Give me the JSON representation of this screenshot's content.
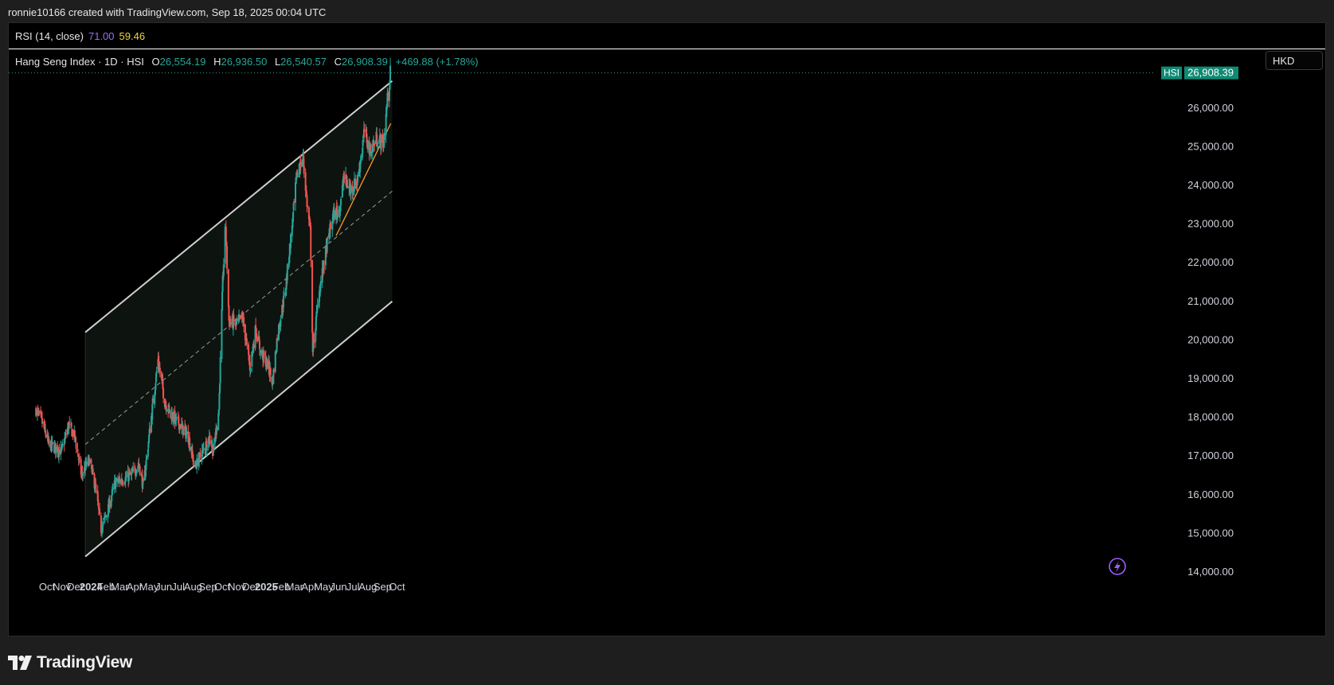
{
  "header": {
    "credit": "ronnie10166 created with TradingView.com, Sep 18, 2025 00:04 UTC"
  },
  "rsi": {
    "label": "RSI (14, close)",
    "value1": "71.00",
    "value2": "59.46"
  },
  "legend": {
    "symbol": "Hang Seng Index · 1D · HSI",
    "open_k": "O",
    "open": "26,554.19",
    "high_k": "H",
    "high": "26,936.50",
    "low_k": "L",
    "low": "26,540.57",
    "close_k": "C",
    "close": "26,908.39",
    "change": "+469.88 (+1.78%)"
  },
  "currency": "HKD",
  "price_tag": {
    "symbol": "HSI",
    "value": "26,908.39"
  },
  "colors": {
    "up": "#26a69a",
    "down": "#ef5350",
    "channel": "#cfcfcf",
    "trend": "#f0902a",
    "bg": "#000000"
  },
  "brand": {
    "name": "TradingView"
  },
  "chart_data": {
    "type": "candlestick",
    "ylim": [
      13800,
      26950
    ],
    "y_ticks": [
      "26,000.00",
      "25,000.00",
      "24,000.00",
      "23,000.00",
      "22,000.00",
      "21,000.00",
      "20,000.00",
      "19,000.00",
      "18,000.00",
      "17,000.00",
      "16,000.00",
      "15,000.00",
      "14,000.00"
    ],
    "y_tick_values": [
      26000,
      25000,
      24000,
      23000,
      22000,
      21000,
      20000,
      19000,
      18000,
      17000,
      16000,
      15000,
      14000
    ],
    "x_ticks": [
      {
        "label": "Oct",
        "date": "2023-10-01",
        "bold": false
      },
      {
        "label": "Nov",
        "date": "2023-11-01",
        "bold": false
      },
      {
        "label": "Dec",
        "date": "2023-12-01",
        "bold": false
      },
      {
        "label": "2024",
        "date": "2024-01-01",
        "bold": true
      },
      {
        "label": "Feb",
        "date": "2024-02-01",
        "bold": false
      },
      {
        "label": "Mar",
        "date": "2024-03-01",
        "bold": false
      },
      {
        "label": "Apr",
        "date": "2024-04-01",
        "bold": false
      },
      {
        "label": "May",
        "date": "2024-05-01",
        "bold": false
      },
      {
        "label": "Jun",
        "date": "2024-06-01",
        "bold": false
      },
      {
        "label": "Jul",
        "date": "2024-07-01",
        "bold": false
      },
      {
        "label": "Aug",
        "date": "2024-08-01",
        "bold": false
      },
      {
        "label": "Sep",
        "date": "2024-09-01",
        "bold": false
      },
      {
        "label": "Oct",
        "date": "2024-10-01",
        "bold": false
      },
      {
        "label": "Nov",
        "date": "2024-11-01",
        "bold": false
      },
      {
        "label": "Dec",
        "date": "2024-12-01",
        "bold": false
      },
      {
        "label": "2025",
        "date": "2025-01-01",
        "bold": true
      },
      {
        "label": "Feb",
        "date": "2025-02-01",
        "bold": false
      },
      {
        "label": "Mar",
        "date": "2025-03-01",
        "bold": false
      },
      {
        "label": "Apr",
        "date": "2025-04-01",
        "bold": false
      },
      {
        "label": "May",
        "date": "2025-05-01",
        "bold": false
      },
      {
        "label": "Jun",
        "date": "2025-06-01",
        "bold": false
      },
      {
        "label": "Jul",
        "date": "2025-07-01",
        "bold": false
      },
      {
        "label": "Aug",
        "date": "2025-08-01",
        "bold": false
      },
      {
        "label": "Sep",
        "date": "2025-09-01",
        "bold": false
      },
      {
        "label": "Oct",
        "date": "2025-10-01",
        "bold": false
      }
    ],
    "close_path": [
      {
        "date": "2023-09-08",
        "close": 18200
      },
      {
        "date": "2023-09-20",
        "close": 17900
      },
      {
        "date": "2023-10-05",
        "close": 17300
      },
      {
        "date": "2023-10-20",
        "close": 17200
      },
      {
        "date": "2023-10-31",
        "close": 17100
      },
      {
        "date": "2023-11-15",
        "close": 17800
      },
      {
        "date": "2023-11-28",
        "close": 17500
      },
      {
        "date": "2023-12-12",
        "close": 16500
      },
      {
        "date": "2023-12-28",
        "close": 16900
      },
      {
        "date": "2024-01-10",
        "close": 16200
      },
      {
        "date": "2024-01-22",
        "close": 15100
      },
      {
        "date": "2024-02-05",
        "close": 15600
      },
      {
        "date": "2024-02-20",
        "close": 16300
      },
      {
        "date": "2024-03-08",
        "close": 16400
      },
      {
        "date": "2024-03-25",
        "close": 16500
      },
      {
        "date": "2024-04-10",
        "close": 16800
      },
      {
        "date": "2024-04-19",
        "close": 16200
      },
      {
        "date": "2024-05-02",
        "close": 17600
      },
      {
        "date": "2024-05-20",
        "close": 19500
      },
      {
        "date": "2024-06-03",
        "close": 18400
      },
      {
        "date": "2024-06-20",
        "close": 18000
      },
      {
        "date": "2024-07-05",
        "close": 17800
      },
      {
        "date": "2024-07-22",
        "close": 17500
      },
      {
        "date": "2024-08-05",
        "close": 16700
      },
      {
        "date": "2024-08-20",
        "close": 17100
      },
      {
        "date": "2024-09-05",
        "close": 17500
      },
      {
        "date": "2024-09-12",
        "close": 17100
      },
      {
        "date": "2024-09-24",
        "close": 18200
      },
      {
        "date": "2024-10-02",
        "close": 21500
      },
      {
        "date": "2024-10-08",
        "close": 23000
      },
      {
        "date": "2024-10-15",
        "close": 20500
      },
      {
        "date": "2024-10-31",
        "close": 20400
      },
      {
        "date": "2024-11-12",
        "close": 20600
      },
      {
        "date": "2024-11-28",
        "close": 19300
      },
      {
        "date": "2024-12-10",
        "close": 20300
      },
      {
        "date": "2024-12-20",
        "close": 19700
      },
      {
        "date": "2025-01-06",
        "close": 19300
      },
      {
        "date": "2025-01-14",
        "close": 18900
      },
      {
        "date": "2025-01-24",
        "close": 20100
      },
      {
        "date": "2025-02-10",
        "close": 21300
      },
      {
        "date": "2025-02-25",
        "close": 23100
      },
      {
        "date": "2025-03-06",
        "close": 24300
      },
      {
        "date": "2025-03-19",
        "close": 24700
      },
      {
        "date": "2025-03-28",
        "close": 23400
      },
      {
        "date": "2025-04-03",
        "close": 22800
      },
      {
        "date": "2025-04-08",
        "close": 19700
      },
      {
        "date": "2025-04-22",
        "close": 21300
      },
      {
        "date": "2025-05-07",
        "close": 22400
      },
      {
        "date": "2025-05-20",
        "close": 23200
      },
      {
        "date": "2025-06-03",
        "close": 23400
      },
      {
        "date": "2025-06-12",
        "close": 24200
      },
      {
        "date": "2025-06-25",
        "close": 23900
      },
      {
        "date": "2025-07-10",
        "close": 24100
      },
      {
        "date": "2025-07-25",
        "close": 25400
      },
      {
        "date": "2025-08-05",
        "close": 24900
      },
      {
        "date": "2025-08-20",
        "close": 25200
      },
      {
        "date": "2025-09-03",
        "close": 25100
      },
      {
        "date": "2025-09-10",
        "close": 26100
      },
      {
        "date": "2025-09-17",
        "close": 26908
      }
    ],
    "channel": {
      "upper": [
        {
          "date": "2023-12-20",
          "value": 20200
        },
        {
          "date": "2025-09-21",
          "value": 26700
        }
      ],
      "middle": [
        {
          "date": "2023-12-20",
          "value": 17300
        },
        {
          "date": "2025-09-21",
          "value": 23850
        }
      ],
      "lower": [
        {
          "date": "2023-12-20",
          "value": 14400
        },
        {
          "date": "2025-09-21",
          "value": 21000
        }
      ]
    },
    "trendline": [
      {
        "date": "2025-05-27",
        "value": 22700
      },
      {
        "date": "2025-09-18",
        "value": 25600
      }
    ],
    "last_price": 26908.39
  }
}
